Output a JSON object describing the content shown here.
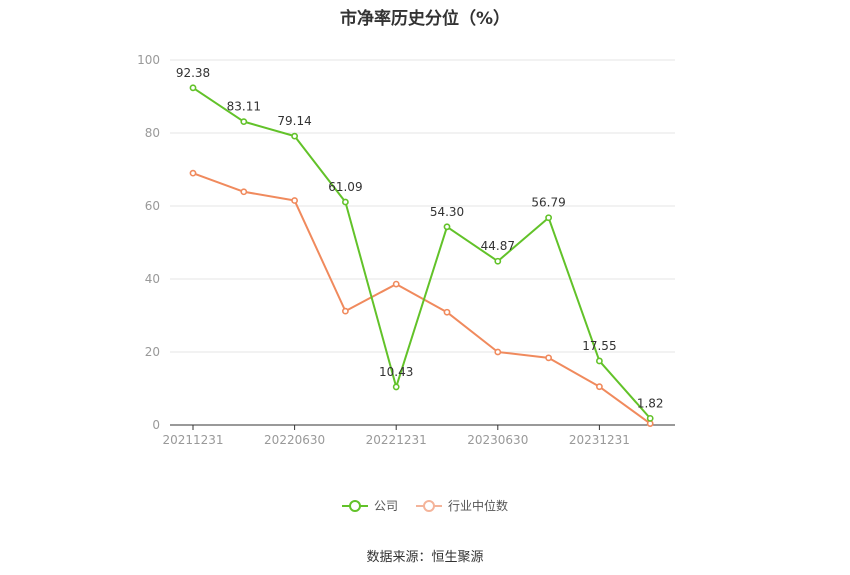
{
  "title": "市净率历史分位（%）",
  "source": "数据来源：恒生聚源",
  "legend": {
    "company": "公司",
    "industry": "行业中位数"
  },
  "colors": {
    "company": "#62c229",
    "industry": "#f08a5d",
    "grid": "#e6e6e6",
    "axis": "#999999"
  },
  "chart_data": {
    "type": "line",
    "title": "市净率历史分位（%）",
    "ylim": [
      0,
      100
    ],
    "yticks": [
      0,
      20,
      40,
      60,
      80,
      100
    ],
    "x_ticks": [
      {
        "index": 0,
        "label": "20211231"
      },
      {
        "index": 2,
        "label": "20220630"
      },
      {
        "index": 4,
        "label": "20221231"
      },
      {
        "index": 6,
        "label": "20230630"
      },
      {
        "index": 8,
        "label": "20231231"
      }
    ],
    "num_points": 10,
    "series": [
      {
        "name": "公司",
        "key": "company",
        "values": [
          92.38,
          83.11,
          79.14,
          61.09,
          10.43,
          54.3,
          44.87,
          56.79,
          17.55,
          1.82
        ],
        "labels": [
          "92.38",
          "83.11",
          "79.14",
          "61.09",
          "10.43",
          "54.30",
          "44.87",
          "56.79",
          "17.55",
          "1.82"
        ]
      },
      {
        "name": "行业中位数",
        "key": "industry",
        "values": [
          69.0,
          63.9,
          61.5,
          31.2,
          38.6,
          30.9,
          20.0,
          18.4,
          10.5,
          0.4
        ]
      }
    ]
  }
}
